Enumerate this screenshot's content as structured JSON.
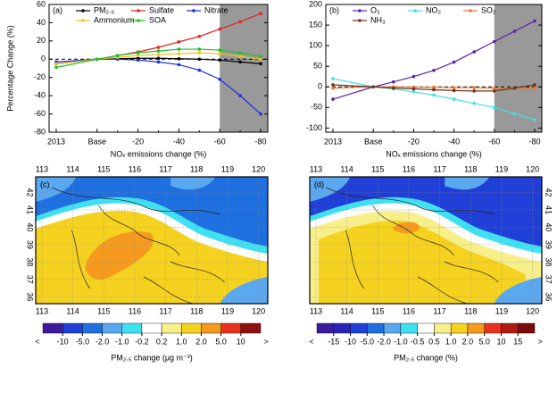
{
  "chart_data": [
    {
      "type": "line",
      "panel": "(a)",
      "xlabel": "NOₓ emissions change (%)",
      "ylabel": "Percentage Change (%)",
      "categories": [
        "2013",
        "Base",
        null,
        "-20",
        null,
        "-40",
        null,
        "-60",
        null,
        "-80"
      ],
      "ylim": [
        -80,
        60
      ],
      "yticks": [
        -80,
        -60,
        -40,
        -20,
        0,
        20,
        40,
        60
      ],
      "reference_y": 0,
      "shade": {
        "from": "-60",
        "color": "#999999"
      },
      "series": [
        {
          "name": "PM₂.₅",
          "color": "#000000",
          "values": [
            -5,
            0,
            0.5,
            1,
            1,
            0.5,
            0,
            -1,
            -3,
            -5
          ]
        },
        {
          "name": "Sulfate",
          "color": "#e8221c",
          "values": [
            -5,
            0,
            4,
            8,
            13,
            19,
            25,
            33,
            41,
            50
          ]
        },
        {
          "name": "Nitrate",
          "color": "#1c2ee0",
          "values": [
            -3,
            0,
            0,
            -1,
            -3,
            -6,
            -12,
            -22,
            -40,
            -60
          ]
        },
        {
          "name": "Ammonium",
          "color": "#f0c020",
          "values": [
            -5,
            0,
            2,
            4,
            5,
            6,
            7,
            6,
            3,
            0
          ]
        },
        {
          "name": "SOA",
          "color": "#20c020",
          "values": [
            -9,
            0,
            4,
            7,
            9,
            11,
            11,
            10,
            7,
            3
          ]
        }
      ]
    },
    {
      "type": "line",
      "panel": "(b)",
      "xlabel": "NOₓ emissions change (%)",
      "categories": [
        "2013",
        "Base",
        null,
        "-20",
        null,
        "-40",
        null,
        "-60",
        null,
        "-80"
      ],
      "ylim": [
        -110,
        200
      ],
      "yticks": [
        -100,
        -50,
        0,
        50,
        100,
        150,
        200
      ],
      "reference_y": 0,
      "shade": {
        "from": "-60",
        "color": "#999999"
      },
      "series": [
        {
          "name": "O₃",
          "color": "#5a22b0",
          "values": [
            -30,
            0,
            12,
            25,
            40,
            60,
            85,
            110,
            135,
            160
          ]
        },
        {
          "name": "NO₂",
          "color": "#40e0e8",
          "values": [
            20,
            0,
            -5,
            -12,
            -20,
            -30,
            -40,
            -50,
            -65,
            -80
          ]
        },
        {
          "name": "SO₂",
          "color": "#f07830",
          "values": [
            -3,
            0,
            0,
            -1,
            -1,
            -2,
            -2,
            -3,
            -3,
            -3
          ]
        },
        {
          "name": "NH₃",
          "color": "#6a3418",
          "values": [
            5,
            0,
            -3,
            -5,
            -7,
            -9,
            -10,
            -10,
            -3,
            5
          ]
        }
      ]
    },
    {
      "type": "map",
      "panel": "(c)",
      "xlim": [
        112.8,
        120.3
      ],
      "ylim": [
        35.6,
        42.9
      ],
      "xticks": [
        113,
        114,
        115,
        116,
        117,
        118,
        119,
        120
      ],
      "yticks": [
        36,
        37,
        38,
        39,
        40,
        41,
        42
      ],
      "ytick_side": "left",
      "colorbar": {
        "title": "PM₂.₅ change (μg m⁻³)",
        "ends": [
          "<",
          ">"
        ],
        "ticks": [
          -10,
          {
            "value": -5,
            "label": "-5.0"
          },
          {
            "value": -2,
            "label": "-2.0"
          },
          {
            "value": -1,
            "label": "-1.0"
          },
          -0.2,
          0.2,
          {
            "value": 1,
            "label": "1.0"
          },
          {
            "value": 2,
            "label": "2.0"
          },
          {
            "value": 5,
            "label": "5.0"
          },
          10
        ],
        "colors": [
          "#3c1a9c",
          "#1f3fd6",
          "#1e6fe0",
          "#5aa8f0",
          "#3fe0f0",
          "#ffffff",
          "#f7f08a",
          "#f5d21f",
          "#f59a1f",
          "#e8321c",
          "#8c1010"
        ]
      }
    },
    {
      "type": "map",
      "panel": "(d)",
      "xlim": [
        112.8,
        120.3
      ],
      "ylim": [
        35.6,
        42.9
      ],
      "xticks": [
        113,
        114,
        115,
        116,
        117,
        118,
        119,
        120
      ],
      "yticks": [
        36,
        37,
        38,
        39,
        40,
        41,
        42
      ],
      "ytick_side": "right",
      "colorbar": {
        "title": "PM₂.₅ change (%)",
        "ends": [
          "<",
          ">"
        ],
        "ticks": [
          -15,
          -10,
          {
            "value": -5,
            "label": "-5.0"
          },
          {
            "value": -2,
            "label": "-2.0"
          },
          {
            "value": -1,
            "label": "-1.0"
          },
          -0.5,
          0.5,
          {
            "value": 1,
            "label": "1.0"
          },
          {
            "value": 2,
            "label": "2.0"
          },
          {
            "value": 5,
            "label": "5.0"
          },
          10,
          15
        ],
        "colors": [
          "#3c1a9c",
          "#2a22b8",
          "#1f3fd6",
          "#1e6fe0",
          "#5aa8f0",
          "#3fe0f0",
          "#ffffff",
          "#f7f08a",
          "#f5d21f",
          "#f59a1f",
          "#e8321c",
          "#b01a10",
          "#7a0c0c"
        ]
      }
    }
  ]
}
